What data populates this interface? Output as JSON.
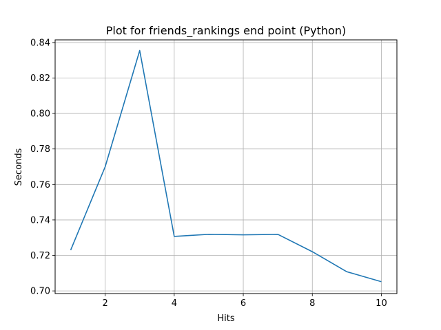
{
  "chart_data": {
    "type": "line",
    "title": "Plot for friends_rankings end point (Python)",
    "xlabel": "Hits",
    "ylabel": "Seconds",
    "xlim": [
      0.55,
      10.45
    ],
    "ylim": [
      0.6985,
      0.8415
    ],
    "xticks": [
      2,
      4,
      6,
      8,
      10
    ],
    "yticks": [
      0.7,
      0.72,
      0.74,
      0.76,
      0.78,
      0.8,
      0.82,
      0.84
    ],
    "xtick_labels": [
      "2",
      "4",
      "6",
      "8",
      "10"
    ],
    "ytick_labels": [
      "0.70",
      "0.72",
      "0.74",
      "0.76",
      "0.78",
      "0.80",
      "0.82",
      "0.84"
    ],
    "grid": true,
    "series": [
      {
        "color": "#1f77b4",
        "x": [
          1,
          2,
          3,
          4,
          5,
          6,
          7,
          8,
          9,
          10
        ],
        "values": [
          0.723,
          0.77,
          0.8355,
          0.7307,
          0.7319,
          0.7316,
          0.7319,
          0.7221,
          0.7108,
          0.7052
        ]
      }
    ]
  }
}
